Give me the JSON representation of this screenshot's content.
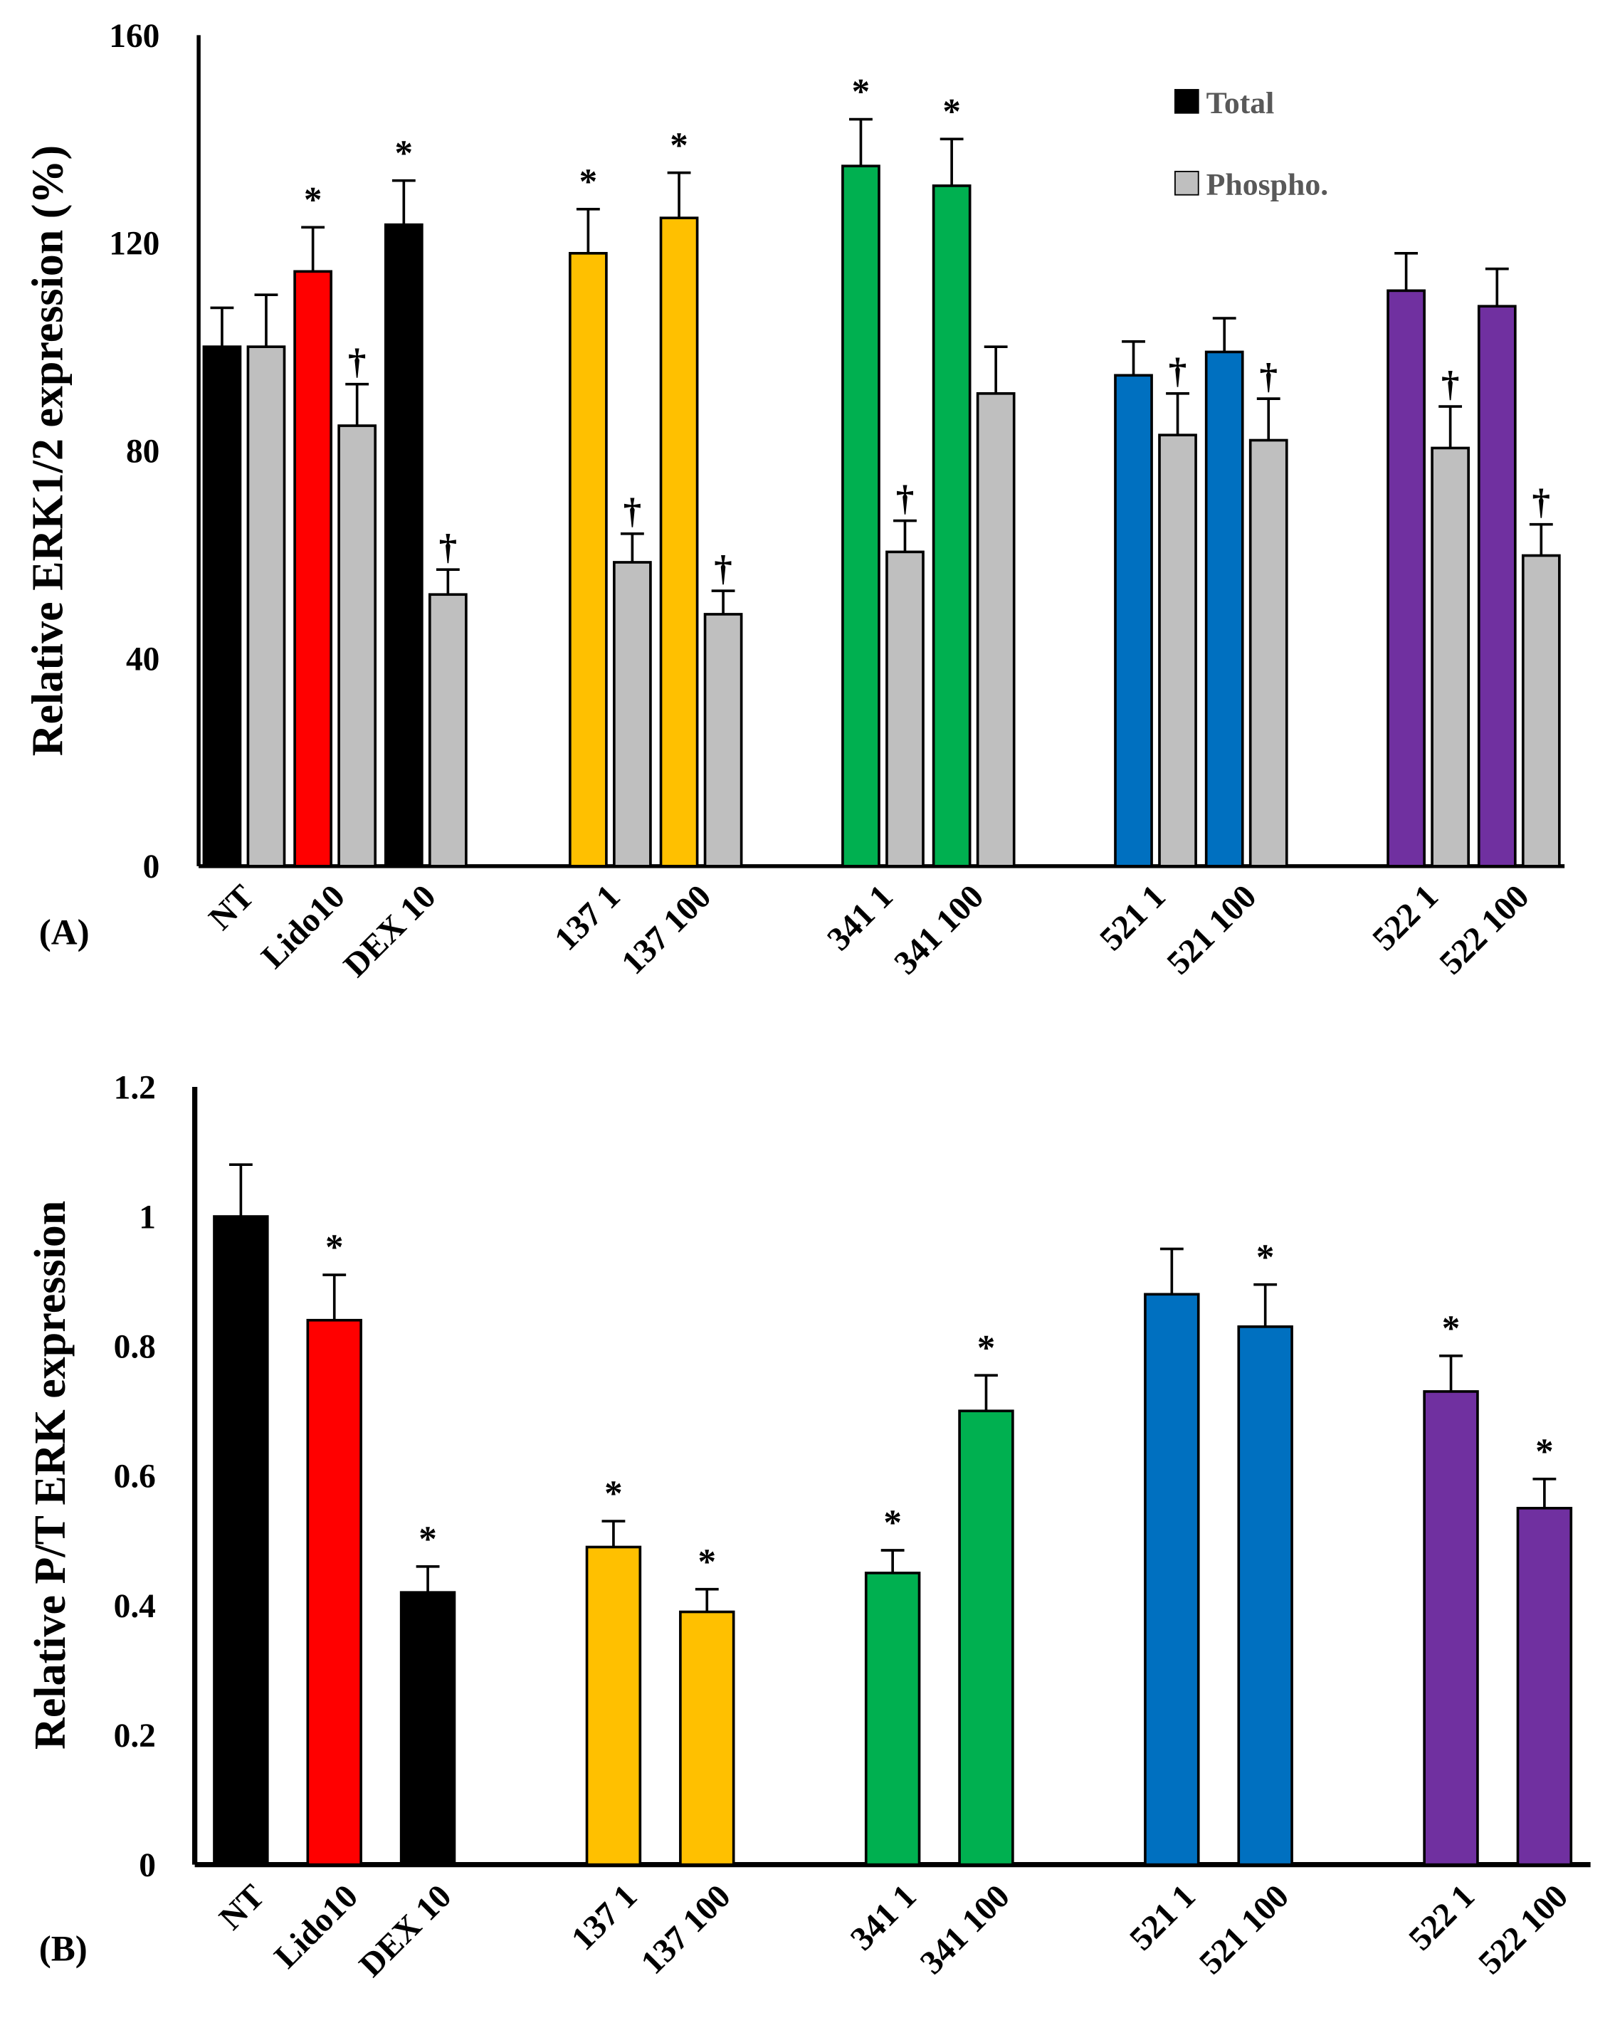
{
  "colors": {
    "NT": "#000000",
    "Lido10": "#ff0000",
    "DEX 10": "#000000",
    "137": "#ffc000",
    "341": "#00b050",
    "521": "#0070c0",
    "522": "#7030a0",
    "phospho": "#bfbfbf"
  },
  "chart_data": [
    {
      "type": "bar",
      "panel_label": "(A)",
      "ylabel": "Relative ERK1/2 expression (%)",
      "ylim": [
        0,
        160
      ],
      "yticks": [
        "0",
        "40",
        "80",
        "120",
        "160"
      ],
      "categories": [
        "NT",
        "Lido10",
        "DEX 10",
        "137 1",
        "137 100",
        "341 1",
        "341 100",
        "521 1",
        "521 100",
        "522 1",
        "522 100"
      ],
      "legend": {
        "position": "top-right",
        "entries": [
          "Total",
          "Phospho."
        ]
      },
      "series": [
        {
          "name": "Total",
          "values": [
            100,
            114.5,
            123.5,
            118,
            124.8,
            134.8,
            131,
            94.5,
            99,
            110.8,
            107.8
          ],
          "errors": [
            7.5,
            8.5,
            8.5,
            8.5,
            8.7,
            9,
            9,
            6.5,
            6.5,
            7.2,
            7.2
          ],
          "marks": [
            "",
            "*",
            "*",
            "*",
            "*",
            "*",
            "*",
            "",
            "",
            "",
            ""
          ]
        },
        {
          "name": "Phospho.",
          "values": [
            100,
            84.8,
            52.3,
            58.5,
            48.5,
            60.5,
            91,
            83,
            82,
            80.5,
            59.8
          ],
          "errors": [
            10,
            8,
            4.8,
            5.5,
            4.5,
            6,
            9,
            8,
            8,
            8,
            6
          ],
          "marks": [
            "",
            "†",
            "†",
            "†",
            "†",
            "†",
            "",
            "†",
            "†",
            "†",
            "†"
          ]
        }
      ]
    },
    {
      "type": "bar",
      "panel_label": "(B)",
      "ylabel": "Relative P/T ERK expression",
      "ylim": [
        0,
        1.2
      ],
      "yticks": [
        "0",
        "0.2",
        "0.4",
        "0.6",
        "0.8",
        "1",
        "1.2"
      ],
      "categories": [
        "NT",
        "Lido10",
        "DEX 10",
        "137 1",
        "137 100",
        "341 1",
        "341 100",
        "521 1",
        "521 100",
        "522 1",
        "522 100"
      ],
      "series": [
        {
          "name": "P/T",
          "values": [
            1.0,
            0.84,
            0.42,
            0.49,
            0.39,
            0.45,
            0.7,
            0.88,
            0.83,
            0.73,
            0.55
          ],
          "errors": [
            0.08,
            0.07,
            0.04,
            0.04,
            0.035,
            0.035,
            0.055,
            0.07,
            0.065,
            0.055,
            0.045
          ],
          "marks": [
            "",
            "*",
            "*",
            "*",
            "*",
            "*",
            "*",
            "",
            "*",
            "*",
            "*"
          ]
        }
      ]
    }
  ]
}
